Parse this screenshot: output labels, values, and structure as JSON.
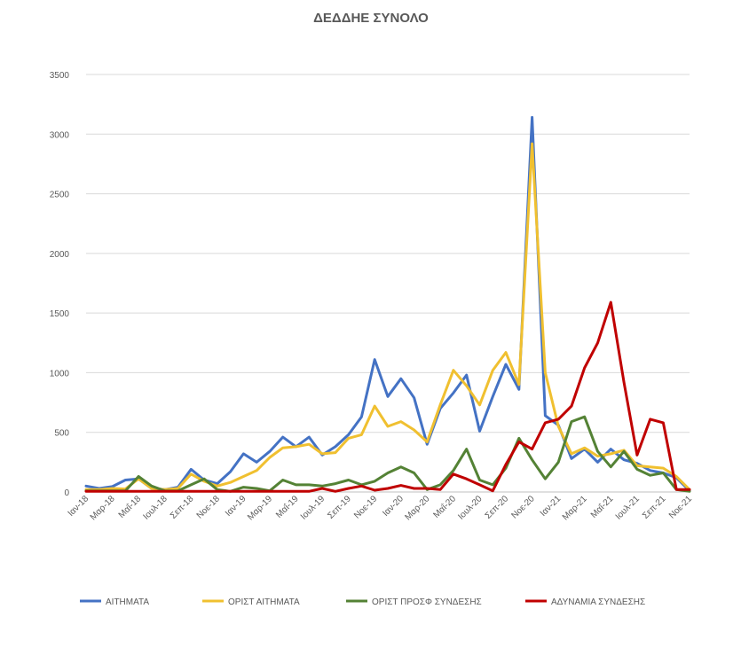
{
  "chart_data": {
    "type": "line",
    "title": "ΔΕΔΔΗΕ ΣΥΝΟΛΟ",
    "ylim": [
      0,
      3500
    ],
    "yticks": [
      0,
      500,
      1000,
      1500,
      2000,
      2500,
      3000,
      3500
    ],
    "grid": true,
    "legend_position": "bottom",
    "x": [
      "Ιαν-18",
      "Φεβ-18",
      "Μαρ-18",
      "Απρ-18",
      "Μαΐ-18",
      "Ιουν-18",
      "Ιουλ-18",
      "Αυγ-18",
      "Σεπ-18",
      "Οκτ-18",
      "Νοε-18",
      "Δεκ-18",
      "Ιαν-19",
      "Φεβ-19",
      "Μαρ-19",
      "Απρ-19",
      "Μαΐ-19",
      "Ιουν-19",
      "Ιουλ-19",
      "Αυγ-19",
      "Σεπ-19",
      "Οκτ-19",
      "Νοε-19",
      "Δεκ-19",
      "Ιαν-20",
      "Φεβ-20",
      "Μαρ-20",
      "Απρ-20",
      "Μαΐ-20",
      "Ιουν-20",
      "Ιουλ-20",
      "Αυγ-20",
      "Σεπ-20",
      "Οκτ-20",
      "Νοε-20",
      "Δεκ-20",
      "Ιαν-21",
      "Φεβ-21",
      "Μαρ-21",
      "Απρ-21",
      "Μαΐ-21",
      "Ιουν-21",
      "Ιουλ-21",
      "Αυγ-21",
      "Σεπ-21",
      "Οκτ-21",
      "Νοε-21"
    ],
    "xtick_labels": [
      "Ιαν-18",
      "Μαρ-18",
      "Μαΐ-18",
      "Ιουλ-18",
      "Σεπ-18",
      "Νοε-18",
      "Ιαν-19",
      "Μαρ-19",
      "Μαΐ-19",
      "Ιουλ-19",
      "Σεπ-19",
      "Νοε-19",
      "Ιαν-20",
      "Μαρ-20",
      "Μαΐ-20",
      "Ιουλ-20",
      "Σεπ-20",
      "Νοε-20",
      "Ιαν-21",
      "Μαρ-21",
      "Μαΐ-21",
      "Ιουλ-21",
      "Σεπ-21",
      "Νοε-21"
    ],
    "series": [
      {
        "name": "ΑΙΤΗΜΑΤΑ",
        "color": "#4472c4",
        "values": [
          50,
          30,
          45,
          100,
          110,
          30,
          20,
          40,
          190,
          100,
          70,
          170,
          320,
          250,
          340,
          460,
          380,
          460,
          310,
          380,
          480,
          630,
          1110,
          800,
          950,
          790,
          400,
          700,
          830,
          980,
          510,
          800,
          1070,
          860,
          3140,
          640,
          560,
          280,
          360,
          250,
          360,
          270,
          240,
          180,
          160,
          120,
          10
        ]
      },
      {
        "name": "ΟΡΙΣΤ ΑΙΤΗΜΑΤΑ",
        "color": "#f0c030",
        "values": [
          20,
          20,
          30,
          25,
          110,
          30,
          20,
          30,
          150,
          90,
          50,
          80,
          130,
          180,
          290,
          370,
          380,
          400,
          320,
          330,
          450,
          480,
          720,
          550,
          590,
          520,
          420,
          730,
          1020,
          890,
          730,
          1020,
          1170,
          900,
          2920,
          1000,
          550,
          320,
          370,
          300,
          320,
          350,
          220,
          210,
          200,
          130,
          20
        ]
      },
      {
        "name": "ΟΡΙΣΤ ΠΡΟΣΦ ΣΥΝΔΕΣΗΣ",
        "color": "#548235",
        "values": [
          10,
          10,
          10,
          10,
          130,
          50,
          10,
          10,
          60,
          110,
          20,
          5,
          40,
          30,
          10,
          100,
          60,
          60,
          50,
          70,
          100,
          60,
          90,
          160,
          210,
          160,
          20,
          60,
          180,
          360,
          100,
          60,
          200,
          450,
          270,
          110,
          250,
          590,
          630,
          340,
          210,
          340,
          190,
          140,
          160,
          20,
          5
        ]
      },
      {
        "name": "ΑΔΥΝΑΜΙΑ ΣΥΝΔΕΣΗΣ",
        "color": "#c00000",
        "values": [
          5,
          5,
          5,
          5,
          5,
          5,
          5,
          5,
          5,
          5,
          5,
          5,
          5,
          5,
          5,
          5,
          5,
          5,
          30,
          5,
          30,
          50,
          15,
          30,
          55,
          30,
          30,
          20,
          150,
          110,
          60,
          10,
          230,
          420,
          360,
          580,
          610,
          720,
          1040,
          1250,
          1590,
          920,
          310,
          610,
          580,
          20,
          20
        ]
      }
    ]
  }
}
